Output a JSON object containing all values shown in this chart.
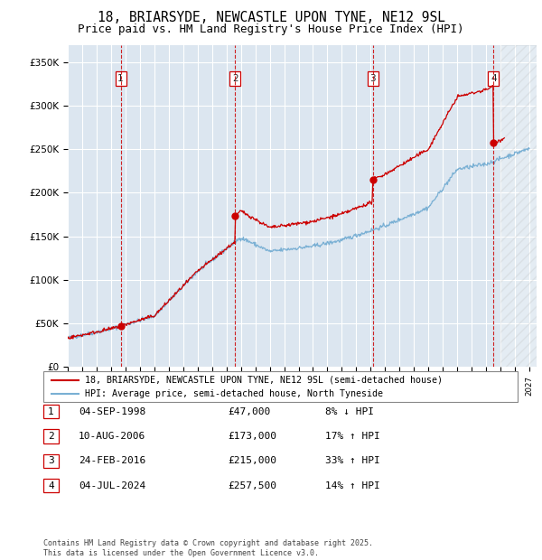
{
  "title": "18, BRIARSYDE, NEWCASTLE UPON TYNE, NE12 9SL",
  "subtitle": "Price paid vs. HM Land Registry's House Price Index (HPI)",
  "ylim": [
    0,
    370000
  ],
  "yticks": [
    0,
    50000,
    100000,
    150000,
    200000,
    250000,
    300000,
    350000
  ],
  "ytick_labels": [
    "£0",
    "£50K",
    "£100K",
    "£150K",
    "£200K",
    "£250K",
    "£300K",
    "£350K"
  ],
  "xlim_start": 1995.0,
  "xlim_end": 2027.5,
  "background_color": "#ffffff",
  "plot_bg_color": "#dce6f0",
  "grid_color": "#ffffff",
  "hpi_line_color": "#7ab0d4",
  "price_line_color": "#cc0000",
  "sale_marker_color": "#cc0000",
  "vline_color": "#cc0000",
  "sale_dates": [
    1998.67,
    2006.61,
    2016.15,
    2024.51
  ],
  "sale_prices": [
    47000,
    173000,
    215000,
    257500
  ],
  "legend_entries": [
    "18, BRIARSYDE, NEWCASTLE UPON TYNE, NE12 9SL (semi-detached house)",
    "HPI: Average price, semi-detached house, North Tyneside"
  ],
  "table_rows": [
    [
      "1",
      "04-SEP-1998",
      "£47,000",
      "8% ↓ HPI"
    ],
    [
      "2",
      "10-AUG-2006",
      "£173,000",
      "17% ↑ HPI"
    ],
    [
      "3",
      "24-FEB-2016",
      "£215,000",
      "33% ↑ HPI"
    ],
    [
      "4",
      "04-JUL-2024",
      "£257,500",
      "14% ↑ HPI"
    ]
  ],
  "footer": "Contains HM Land Registry data © Crown copyright and database right 2025.\nThis data is licensed under the Open Government Licence v3.0.",
  "title_fontsize": 10.5,
  "subtitle_fontsize": 9,
  "tick_fontsize": 7.5
}
